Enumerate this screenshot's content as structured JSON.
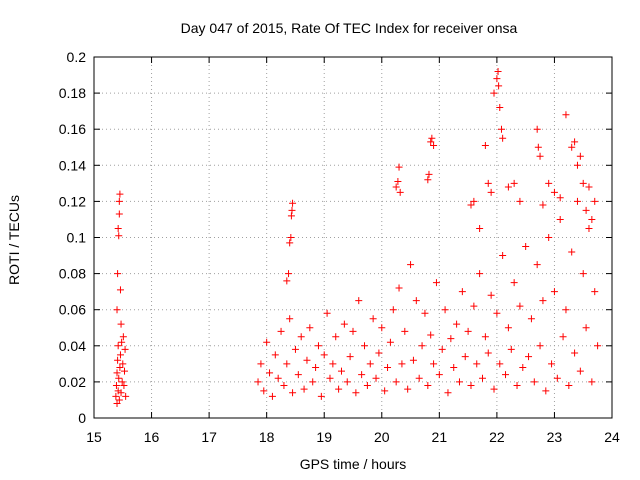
{
  "chart_data": {
    "type": "scatter",
    "title": "Day 047 of 2015, Rate Of TEC Index for receiver onsa",
    "xlabel": "GPS time / hours",
    "ylabel": "ROTI / TECUs",
    "xlim": [
      15,
      24
    ],
    "ylim": [
      0,
      0.2
    ],
    "xticks": [
      "15",
      "16",
      "17",
      "18",
      "19",
      "20",
      "21",
      "22",
      "23",
      "24"
    ],
    "yticks": [
      "0",
      "0.02",
      "0.04",
      "0.06",
      "0.08",
      "0.1",
      "0.12",
      "0.14",
      "0.16",
      "0.18",
      "0.2"
    ],
    "grid": true,
    "marker": "plus",
    "color": "#ff0000",
    "series": [
      {
        "points": [
          [
            15.38,
            0.012
          ],
          [
            15.39,
            0.018
          ],
          [
            15.4,
            0.025
          ],
          [
            15.4,
            0.008
          ],
          [
            15.41,
            0.032
          ],
          [
            15.42,
            0.015
          ],
          [
            15.42,
            0.04
          ],
          [
            15.43,
            0.022
          ],
          [
            15.44,
            0.01
          ],
          [
            15.45,
            0.028
          ],
          [
            15.46,
            0.035
          ],
          [
            15.47,
            0.014
          ],
          [
            15.48,
            0.042
          ],
          [
            15.49,
            0.02
          ],
          [
            15.5,
            0.03
          ],
          [
            15.51,
            0.045
          ],
          [
            15.52,
            0.018
          ],
          [
            15.53,
            0.026
          ],
          [
            15.54,
            0.038
          ],
          [
            15.55,
            0.012
          ],
          [
            15.4,
            0.06
          ],
          [
            15.41,
            0.08
          ],
          [
            15.42,
            0.105
          ],
          [
            15.43,
            0.101
          ],
          [
            15.44,
            0.113
          ],
          [
            15.44,
            0.12
          ],
          [
            15.45,
            0.124
          ],
          [
            15.46,
            0.071
          ],
          [
            15.47,
            0.052
          ],
          [
            17.85,
            0.02
          ],
          [
            17.9,
            0.03
          ],
          [
            17.95,
            0.015
          ],
          [
            18.0,
            0.042
          ],
          [
            18.05,
            0.025
          ],
          [
            18.1,
            0.012
          ],
          [
            18.15,
            0.035
          ],
          [
            18.2,
            0.022
          ],
          [
            18.25,
            0.048
          ],
          [
            18.3,
            0.018
          ],
          [
            18.35,
            0.03
          ],
          [
            18.4,
            0.055
          ],
          [
            18.45,
            0.014
          ],
          [
            18.5,
            0.038
          ],
          [
            18.55,
            0.024
          ],
          [
            18.6,
            0.045
          ],
          [
            18.65,
            0.016
          ],
          [
            18.7,
            0.032
          ],
          [
            18.75,
            0.05
          ],
          [
            18.8,
            0.02
          ],
          [
            18.85,
            0.028
          ],
          [
            18.9,
            0.04
          ],
          [
            18.95,
            0.012
          ],
          [
            19.0,
            0.035
          ],
          [
            19.05,
            0.058
          ],
          [
            19.1,
            0.022
          ],
          [
            19.15,
            0.03
          ],
          [
            19.2,
            0.045
          ],
          [
            19.25,
            0.016
          ],
          [
            19.3,
            0.026
          ],
          [
            19.35,
            0.052
          ],
          [
            19.4,
            0.02
          ],
          [
            19.45,
            0.034
          ],
          [
            19.5,
            0.048
          ],
          [
            19.55,
            0.014
          ],
          [
            19.6,
            0.065
          ],
          [
            19.65,
            0.024
          ],
          [
            19.7,
            0.04
          ],
          [
            19.75,
            0.018
          ],
          [
            19.8,
            0.03
          ],
          [
            19.85,
            0.055
          ],
          [
            19.9,
            0.022
          ],
          [
            19.95,
            0.036
          ],
          [
            20.0,
            0.05
          ],
          [
            20.05,
            0.015
          ],
          [
            20.1,
            0.028
          ],
          [
            20.15,
            0.042
          ],
          [
            20.2,
            0.06
          ],
          [
            20.25,
            0.02
          ],
          [
            20.3,
            0.072
          ],
          [
            20.35,
            0.03
          ],
          [
            20.4,
            0.048
          ],
          [
            20.45,
            0.016
          ],
          [
            20.5,
            0.085
          ],
          [
            20.55,
            0.032
          ],
          [
            20.6,
            0.065
          ],
          [
            20.65,
            0.022
          ],
          [
            20.7,
            0.04
          ],
          [
            20.75,
            0.058
          ],
          [
            20.8,
            0.018
          ],
          [
            20.85,
            0.046
          ],
          [
            20.9,
            0.03
          ],
          [
            20.95,
            0.075
          ],
          [
            21.0,
            0.024
          ],
          [
            21.05,
            0.038
          ],
          [
            21.1,
            0.06
          ],
          [
            21.15,
            0.014
          ],
          [
            21.2,
            0.044
          ],
          [
            21.25,
            0.028
          ],
          [
            21.3,
            0.052
          ],
          [
            21.35,
            0.02
          ],
          [
            21.4,
            0.07
          ],
          [
            21.45,
            0.034
          ],
          [
            21.5,
            0.048
          ],
          [
            21.55,
            0.018
          ],
          [
            21.6,
            0.062
          ],
          [
            21.65,
            0.03
          ],
          [
            21.7,
            0.08
          ],
          [
            21.75,
            0.022
          ],
          [
            21.8,
            0.045
          ],
          [
            21.85,
            0.036
          ],
          [
            21.9,
            0.068
          ],
          [
            21.95,
            0.016
          ],
          [
            22.0,
            0.058
          ],
          [
            22.05,
            0.03
          ],
          [
            22.1,
            0.09
          ],
          [
            22.15,
            0.024
          ],
          [
            22.2,
            0.05
          ],
          [
            22.25,
            0.038
          ],
          [
            22.3,
            0.075
          ],
          [
            22.35,
            0.018
          ],
          [
            22.4,
            0.062
          ],
          [
            22.45,
            0.028
          ],
          [
            22.5,
            0.095
          ],
          [
            22.55,
            0.034
          ],
          [
            22.6,
            0.055
          ],
          [
            22.65,
            0.02
          ],
          [
            22.7,
            0.085
          ],
          [
            22.75,
            0.04
          ],
          [
            22.8,
            0.065
          ],
          [
            22.85,
            0.015
          ],
          [
            22.9,
            0.1
          ],
          [
            22.95,
            0.03
          ],
          [
            23.0,
            0.07
          ],
          [
            23.05,
            0.022
          ],
          [
            23.1,
            0.11
          ],
          [
            23.15,
            0.045
          ],
          [
            23.2,
            0.06
          ],
          [
            23.25,
            0.018
          ],
          [
            23.3,
            0.092
          ],
          [
            23.35,
            0.036
          ],
          [
            23.4,
            0.12
          ],
          [
            23.45,
            0.026
          ],
          [
            23.5,
            0.08
          ],
          [
            23.55,
            0.05
          ],
          [
            23.6,
            0.105
          ],
          [
            23.65,
            0.02
          ],
          [
            23.7,
            0.07
          ],
          [
            23.75,
            0.04
          ],
          [
            18.35,
            0.076
          ],
          [
            18.38,
            0.08
          ],
          [
            18.4,
            0.097
          ],
          [
            18.42,
            0.1
          ],
          [
            18.43,
            0.112
          ],
          [
            18.44,
            0.115
          ],
          [
            18.45,
            0.119
          ],
          [
            20.25,
            0.128
          ],
          [
            20.28,
            0.131
          ],
          [
            20.3,
            0.139
          ],
          [
            20.32,
            0.125
          ],
          [
            20.8,
            0.132
          ],
          [
            20.82,
            0.135
          ],
          [
            20.85,
            0.153
          ],
          [
            20.87,
            0.155
          ],
          [
            20.9,
            0.151
          ],
          [
            21.55,
            0.118
          ],
          [
            21.6,
            0.12
          ],
          [
            21.7,
            0.105
          ],
          [
            21.8,
            0.151
          ],
          [
            21.85,
            0.13
          ],
          [
            21.9,
            0.125
          ],
          [
            21.95,
            0.18
          ],
          [
            22.0,
            0.188
          ],
          [
            22.02,
            0.192
          ],
          [
            22.03,
            0.184
          ],
          [
            22.05,
            0.172
          ],
          [
            22.08,
            0.16
          ],
          [
            22.1,
            0.155
          ],
          [
            22.2,
            0.128
          ],
          [
            22.3,
            0.13
          ],
          [
            22.4,
            0.12
          ],
          [
            22.7,
            0.16
          ],
          [
            22.72,
            0.15
          ],
          [
            22.75,
            0.145
          ],
          [
            22.8,
            0.118
          ],
          [
            22.9,
            0.13
          ],
          [
            23.0,
            0.125
          ],
          [
            23.1,
            0.122
          ],
          [
            23.2,
            0.168
          ],
          [
            23.3,
            0.15
          ],
          [
            23.35,
            0.153
          ],
          [
            23.4,
            0.14
          ],
          [
            23.45,
            0.145
          ],
          [
            23.5,
            0.13
          ],
          [
            23.55,
            0.115
          ],
          [
            23.6,
            0.128
          ],
          [
            23.65,
            0.11
          ],
          [
            23.7,
            0.12
          ]
        ]
      }
    ]
  }
}
